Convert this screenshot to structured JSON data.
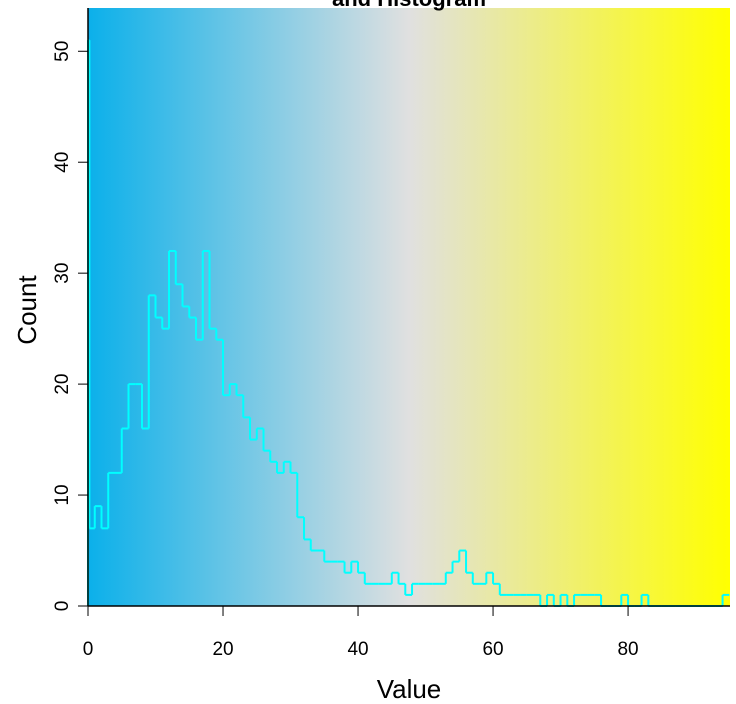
{
  "chart_data": {
    "type": "histogram",
    "title": "and Histogram",
    "xlabel": "Value",
    "ylabel": "Count",
    "bins": [
      0,
      0.2,
      1,
      2,
      3,
      4,
      5,
      6,
      7,
      8,
      9,
      10,
      11,
      12,
      13,
      14,
      15,
      16,
      17,
      18,
      19,
      20,
      21,
      22,
      23,
      24,
      25,
      26,
      27,
      28,
      29,
      30,
      31,
      32,
      33,
      34,
      35,
      36,
      37,
      38,
      39,
      40,
      41,
      42,
      43,
      44,
      45,
      46,
      47,
      48,
      49,
      50,
      51,
      52,
      53,
      54,
      55,
      56,
      57,
      58,
      59,
      60,
      61,
      62,
      63,
      64,
      65,
      66,
      67,
      68,
      69,
      70,
      71,
      72,
      73,
      74,
      75,
      76,
      77,
      78,
      79,
      80,
      81,
      82,
      83,
      84,
      85,
      86,
      87,
      88,
      89,
      90,
      91,
      92,
      93,
      94,
      95
    ],
    "values": [
      51,
      7,
      9,
      7,
      12,
      12,
      16,
      20,
      20,
      16,
      28,
      26,
      25,
      32,
      29,
      27,
      26,
      24,
      32,
      25,
      24,
      19,
      20,
      19,
      17,
      15,
      16,
      14,
      13,
      12,
      13,
      12,
      8,
      6,
      5,
      5,
      4,
      4,
      4,
      3,
      4,
      3,
      2,
      2,
      2,
      2,
      3,
      2,
      1,
      2,
      2,
      2,
      2,
      2,
      3,
      4,
      5,
      3,
      2,
      2,
      3,
      2,
      1,
      1,
      1,
      1,
      1,
      1,
      0,
      1,
      0,
      1,
      0,
      1,
      1,
      1,
      1,
      0,
      0,
      0,
      1,
      0,
      0,
      1,
      0,
      0,
      0,
      0,
      0,
      0,
      0,
      0,
      0,
      0,
      0,
      1
    ],
    "color": "#00ffff",
    "background_colors": [
      "#0bb0ea",
      "#e0e0e0",
      "#ffff00"
    ],
    "xlim": [
      0,
      95.1
    ],
    "xticks": [
      0,
      20,
      40,
      60,
      80
    ],
    "ylim": [
      0,
      53.9
    ],
    "yticks": [
      0,
      10,
      20,
      30,
      40,
      50
    ]
  }
}
